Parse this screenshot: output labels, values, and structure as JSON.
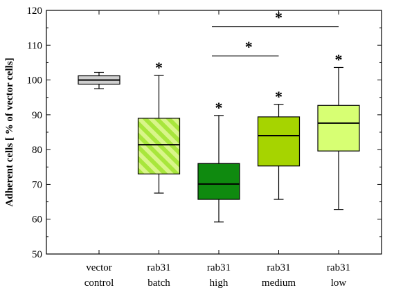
{
  "chart_data": {
    "type": "box",
    "ylabel": "Adherent cells [ % of vector cells]",
    "ylim": [
      50,
      120
    ],
    "yticks": [
      50,
      60,
      70,
      80,
      90,
      100,
      110,
      120
    ],
    "grid": false,
    "categories": [
      {
        "line1": "vector",
        "line2": "control",
        "min": 97.5,
        "q1": 98.8,
        "median": 100.0,
        "q3": 101.2,
        "max": 102.2,
        "color": "#cfcfcf",
        "hatch": false,
        "star": ""
      },
      {
        "line1": "rab31",
        "line2": "batch",
        "min": 67.5,
        "q1": 73.0,
        "median": 81.4,
        "q3": 89.0,
        "max": 101.3,
        "color": "#a8e63c",
        "hatch": true,
        "star": "*"
      },
      {
        "line1": "rab31",
        "line2": "high",
        "min": 59.2,
        "q1": 65.7,
        "median": 70.1,
        "q3": 76.0,
        "max": 89.8,
        "color": "#0f8a0f",
        "hatch": false,
        "star": "*"
      },
      {
        "line1": "rab31",
        "line2": "medium",
        "min": 65.7,
        "q1": 75.3,
        "median": 84.0,
        "q3": 89.4,
        "max": 93.0,
        "color": "#a6d400",
        "hatch": false,
        "star": "*"
      },
      {
        "line1": "rab31",
        "line2": "low",
        "min": 62.8,
        "q1": 79.6,
        "median": 87.6,
        "q3": 92.7,
        "max": 103.6,
        "color": "#d7ff73",
        "hatch": false,
        "star": "*"
      }
    ],
    "comparisons": [
      {
        "from": 2,
        "to": 4,
        "y": 115.3,
        "label": "*"
      },
      {
        "from": 2,
        "to": 3,
        "y": 106.9,
        "label": "*"
      }
    ]
  }
}
